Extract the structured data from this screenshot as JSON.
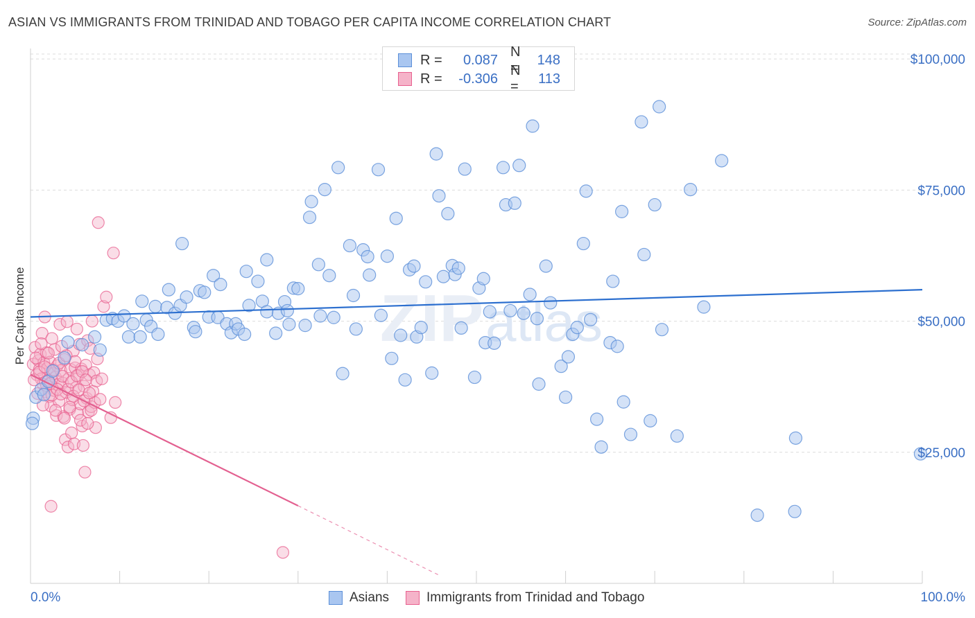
{
  "header": {
    "title": "ASIAN VS IMMIGRANTS FROM TRINIDAD AND TOBAGO PER CAPITA INCOME CORRELATION CHART",
    "source": "Source: ZipAtlas.com"
  },
  "legend": {
    "rows": [
      {
        "r_label": "R =",
        "r_value": "0.087",
        "n_label": "N =",
        "n_value": "148"
      },
      {
        "r_label": "R =",
        "r_value": "-0.306",
        "n_label": "N =",
        "n_value": "113"
      }
    ]
  },
  "bottom_legend": {
    "series1": "Asians",
    "series2": "Immigrants from Trinidad and Tobago"
  },
  "axes": {
    "ylabel": "Per Capita Income",
    "x_min_label": "0.0%",
    "x_max_label": "100.0%"
  },
  "colors": {
    "asians": "#5b8fd8",
    "asians_fill": "#a9c6f0",
    "trinidad": "#e8608f",
    "trinidad_fill": "#f5b3c9",
    "asians_line": "#2c6fcf",
    "trinidad_line": "#e36090",
    "tick": "#3a6fc4"
  },
  "chart_data": {
    "type": "scatter",
    "title": "ASIAN VS IMMIGRANTS FROM TRINIDAD AND TOBAGO PER CAPITA INCOME CORRELATION CHART",
    "xlabel": "",
    "ylabel": "Per Capita Income",
    "xlim": [
      0,
      100
    ],
    "ylim": [
      0,
      102000
    ],
    "y_ticks": [
      25000,
      50000,
      75000,
      100000
    ],
    "y_tick_labels": [
      "$25,000",
      "$50,000",
      "$75,000",
      "$100,000"
    ],
    "x_tick_labels": [
      "0.0%",
      "100.0%"
    ],
    "grid": true,
    "legend_position": "top-center",
    "series": [
      {
        "name": "Asians",
        "r": 0.087,
        "n": 148,
        "trend": {
          "x0": 0,
          "y0": 50800,
          "x1": 100,
          "y1": 56000
        },
        "points": [
          [
            0.3,
            31500
          ],
          [
            0.6,
            35500
          ],
          [
            1.2,
            37000
          ],
          [
            2.0,
            38500
          ],
          [
            2.5,
            40500
          ],
          [
            3.8,
            43000
          ],
          [
            4.2,
            46000
          ],
          [
            5.8,
            45500
          ],
          [
            7.2,
            47000
          ],
          [
            7.8,
            44500
          ],
          [
            8.5,
            50200
          ],
          [
            9.2,
            50500
          ],
          [
            9.8,
            50000
          ],
          [
            10.5,
            51000
          ],
          [
            11.0,
            47000
          ],
          [
            11.5,
            49500
          ],
          [
            12.3,
            47000
          ],
          [
            12.5,
            53800
          ],
          [
            13.0,
            50200
          ],
          [
            13.5,
            49000
          ],
          [
            14.3,
            47500
          ],
          [
            14.0,
            52800
          ],
          [
            15.3,
            52600
          ],
          [
            15.5,
            56000
          ],
          [
            16.2,
            51500
          ],
          [
            16.8,
            53000
          ],
          [
            17.0,
            64800
          ],
          [
            17.5,
            54600
          ],
          [
            18.3,
            48800
          ],
          [
            18.5,
            48000
          ],
          [
            19.0,
            55800
          ],
          [
            19.5,
            55500
          ],
          [
            20.0,
            50800
          ],
          [
            20.5,
            58700
          ],
          [
            21.0,
            50700
          ],
          [
            21.3,
            57000
          ],
          [
            22.0,
            49500
          ],
          [
            22.5,
            47800
          ],
          [
            23.0,
            49500
          ],
          [
            23.3,
            48500
          ],
          [
            24.0,
            47500
          ],
          [
            24.2,
            59500
          ],
          [
            24.5,
            53000
          ],
          [
            25.5,
            57600
          ],
          [
            26.0,
            53800
          ],
          [
            26.5,
            51800
          ],
          [
            26.5,
            61700
          ],
          [
            27.5,
            47700
          ],
          [
            27.8,
            51500
          ],
          [
            28.5,
            53700
          ],
          [
            28.8,
            52000
          ],
          [
            29.0,
            49400
          ],
          [
            29.5,
            56300
          ],
          [
            30.0,
            56200
          ],
          [
            30.8,
            49200
          ],
          [
            31.3,
            69800
          ],
          [
            31.5,
            72800
          ],
          [
            32.3,
            60800
          ],
          [
            32.5,
            51000
          ],
          [
            33.0,
            75100
          ],
          [
            33.5,
            58700
          ],
          [
            34.0,
            50700
          ],
          [
            34.5,
            79300
          ],
          [
            35.0,
            40000
          ],
          [
            35.8,
            64400
          ],
          [
            36.2,
            54900
          ],
          [
            36.5,
            48500
          ],
          [
            37.3,
            63600
          ],
          [
            37.8,
            62300
          ],
          [
            38.0,
            58800
          ],
          [
            39.0,
            78900
          ],
          [
            39.3,
            51100
          ],
          [
            40.0,
            62400
          ],
          [
            40.5,
            42900
          ],
          [
            41.0,
            69600
          ],
          [
            41.5,
            47300
          ],
          [
            42.0,
            38800
          ],
          [
            42.5,
            59800
          ],
          [
            43.0,
            60500
          ],
          [
            43.3,
            47000
          ],
          [
            43.8,
            48800
          ],
          [
            44.3,
            57500
          ],
          [
            45.0,
            40100
          ],
          [
            45.5,
            81900
          ],
          [
            45.8,
            73900
          ],
          [
            46.3,
            58500
          ],
          [
            46.8,
            70500
          ],
          [
            47.3,
            60600
          ],
          [
            47.6,
            58900
          ],
          [
            48.0,
            60100
          ],
          [
            48.3,
            48700
          ],
          [
            48.7,
            79000
          ],
          [
            49.8,
            39300
          ],
          [
            50.3,
            56300
          ],
          [
            50.8,
            58100
          ],
          [
            51.0,
            45900
          ],
          [
            51.5,
            51800
          ],
          [
            52.0,
            45800
          ],
          [
            53.0,
            79300
          ],
          [
            53.3,
            72200
          ],
          [
            53.8,
            52000
          ],
          [
            54.3,
            72500
          ],
          [
            54.8,
            79700
          ],
          [
            55.3,
            51500
          ],
          [
            56.0,
            55100
          ],
          [
            56.3,
            87200
          ],
          [
            56.8,
            50500
          ],
          [
            57.0,
            38000
          ],
          [
            57.8,
            60500
          ],
          [
            58.3,
            53500
          ],
          [
            59.5,
            41400
          ],
          [
            60.0,
            35500
          ],
          [
            60.3,
            43200
          ],
          [
            60.8,
            47500
          ],
          [
            61.3,
            48800
          ],
          [
            62.0,
            64800
          ],
          [
            62.3,
            74800
          ],
          [
            62.8,
            50300
          ],
          [
            63.5,
            31300
          ],
          [
            64.0,
            26000
          ],
          [
            65.0,
            45900
          ],
          [
            65.3,
            57600
          ],
          [
            65.8,
            45200
          ],
          [
            66.5,
            34600
          ],
          [
            66.3,
            70900
          ],
          [
            67.3,
            28400
          ],
          [
            68.5,
            88000
          ],
          [
            68.8,
            62700
          ],
          [
            69.5,
            31000
          ],
          [
            70.0,
            72200
          ],
          [
            70.5,
            90900
          ],
          [
            70.8,
            48400
          ],
          [
            72.5,
            28100
          ],
          [
            74.0,
            75100
          ],
          [
            75.5,
            52700
          ],
          [
            77.5,
            80600
          ],
          [
            81.5,
            13000
          ],
          [
            85.7,
            13700
          ],
          [
            85.8,
            27700
          ],
          [
            99.8,
            24700
          ],
          [
            0.2,
            30500
          ],
          [
            1.5,
            36000
          ]
        ]
      },
      {
        "name": "Immigrants from Trinidad and Tobago",
        "r": -0.306,
        "n": 113,
        "trend": {
          "x0": 0,
          "y0": 39800,
          "x1": 30,
          "y1": 14800,
          "x1_dashed": 46,
          "y1_dashed": 1400
        },
        "points": [
          [
            0.3,
            41800
          ],
          [
            0.5,
            45000
          ],
          [
            0.7,
            39800
          ],
          [
            0.9,
            42500
          ],
          [
            1.0,
            40800
          ],
          [
            1.1,
            43700
          ],
          [
            1.2,
            39000
          ],
          [
            1.3,
            47700
          ],
          [
            1.4,
            38000
          ],
          [
            1.5,
            42100
          ],
          [
            1.6,
            50800
          ],
          [
            1.7,
            36500
          ],
          [
            1.8,
            44000
          ],
          [
            1.9,
            41000
          ],
          [
            2.0,
            38700
          ],
          [
            2.1,
            35600
          ],
          [
            2.2,
            42200
          ],
          [
            2.3,
            33800
          ],
          [
            2.4,
            46700
          ],
          [
            2.5,
            40000
          ],
          [
            2.6,
            36800
          ],
          [
            2.7,
            44600
          ],
          [
            2.8,
            39300
          ],
          [
            2.9,
            32000
          ],
          [
            3.0,
            41500
          ],
          [
            3.1,
            37900
          ],
          [
            3.2,
            34700
          ],
          [
            3.3,
            49400
          ],
          [
            3.4,
            40600
          ],
          [
            3.5,
            45200
          ],
          [
            3.6,
            38200
          ],
          [
            3.7,
            31800
          ],
          [
            3.8,
            42700
          ],
          [
            3.9,
            27400
          ],
          [
            4.0,
            36400
          ],
          [
            4.1,
            49900
          ],
          [
            4.2,
            26000
          ],
          [
            4.3,
            39100
          ],
          [
            4.4,
            33200
          ],
          [
            4.5,
            40800
          ],
          [
            4.6,
            28700
          ],
          [
            4.7,
            35000
          ],
          [
            4.8,
            44300
          ],
          [
            4.9,
            26600
          ],
          [
            5.0,
            41100
          ],
          [
            5.1,
            37300
          ],
          [
            5.2,
            48500
          ],
          [
            5.3,
            32400
          ],
          [
            5.4,
            39700
          ],
          [
            5.5,
            45600
          ],
          [
            5.6,
            34200
          ],
          [
            5.7,
            40900
          ],
          [
            5.8,
            30000
          ],
          [
            5.9,
            26300
          ],
          [
            6.0,
            37600
          ],
          [
            6.1,
            21200
          ],
          [
            6.2,
            41600
          ],
          [
            6.3,
            35300
          ],
          [
            6.4,
            46300
          ],
          [
            6.5,
            32700
          ],
          [
            6.6,
            39800
          ],
          [
            6.7,
            44800
          ],
          [
            6.8,
            33700
          ],
          [
            6.9,
            50000
          ],
          [
            7.0,
            36600
          ],
          [
            7.1,
            40200
          ],
          [
            7.2,
            34500
          ],
          [
            7.3,
            29700
          ],
          [
            7.4,
            38600
          ],
          [
            7.5,
            42800
          ],
          [
            7.6,
            68800
          ],
          [
            7.8,
            35100
          ],
          [
            8.0,
            39000
          ],
          [
            8.2,
            52800
          ],
          [
            8.5,
            54600
          ],
          [
            9.0,
            31600
          ],
          [
            9.3,
            63000
          ],
          [
            9.5,
            34500
          ],
          [
            2.3,
            14700
          ],
          [
            28.3,
            5900
          ],
          [
            0.4,
            38800
          ],
          [
            0.6,
            43000
          ],
          [
            0.8,
            36200
          ],
          [
            1.0,
            40300
          ],
          [
            1.2,
            45700
          ],
          [
            1.4,
            34000
          ],
          [
            1.6,
            41300
          ],
          [
            1.8,
            37700
          ],
          [
            2.0,
            43900
          ],
          [
            2.2,
            38100
          ],
          [
            2.4,
            35900
          ],
          [
            2.6,
            40700
          ],
          [
            2.8,
            33000
          ],
          [
            3.0,
            37000
          ],
          [
            3.2,
            42000
          ],
          [
            3.4,
            36100
          ],
          [
            3.6,
            39500
          ],
          [
            3.8,
            31500
          ],
          [
            4.0,
            43400
          ],
          [
            4.2,
            37000
          ],
          [
            4.4,
            33600
          ],
          [
            4.6,
            38400
          ],
          [
            4.8,
            35700
          ],
          [
            5.0,
            42300
          ],
          [
            5.2,
            39600
          ],
          [
            5.4,
            36900
          ],
          [
            5.6,
            31100
          ],
          [
            5.8,
            40400
          ],
          [
            6.0,
            34800
          ],
          [
            6.2,
            38800
          ],
          [
            6.4,
            30500
          ],
          [
            6.6,
            36300
          ],
          [
            6.8,
            33000
          ]
        ]
      }
    ]
  }
}
